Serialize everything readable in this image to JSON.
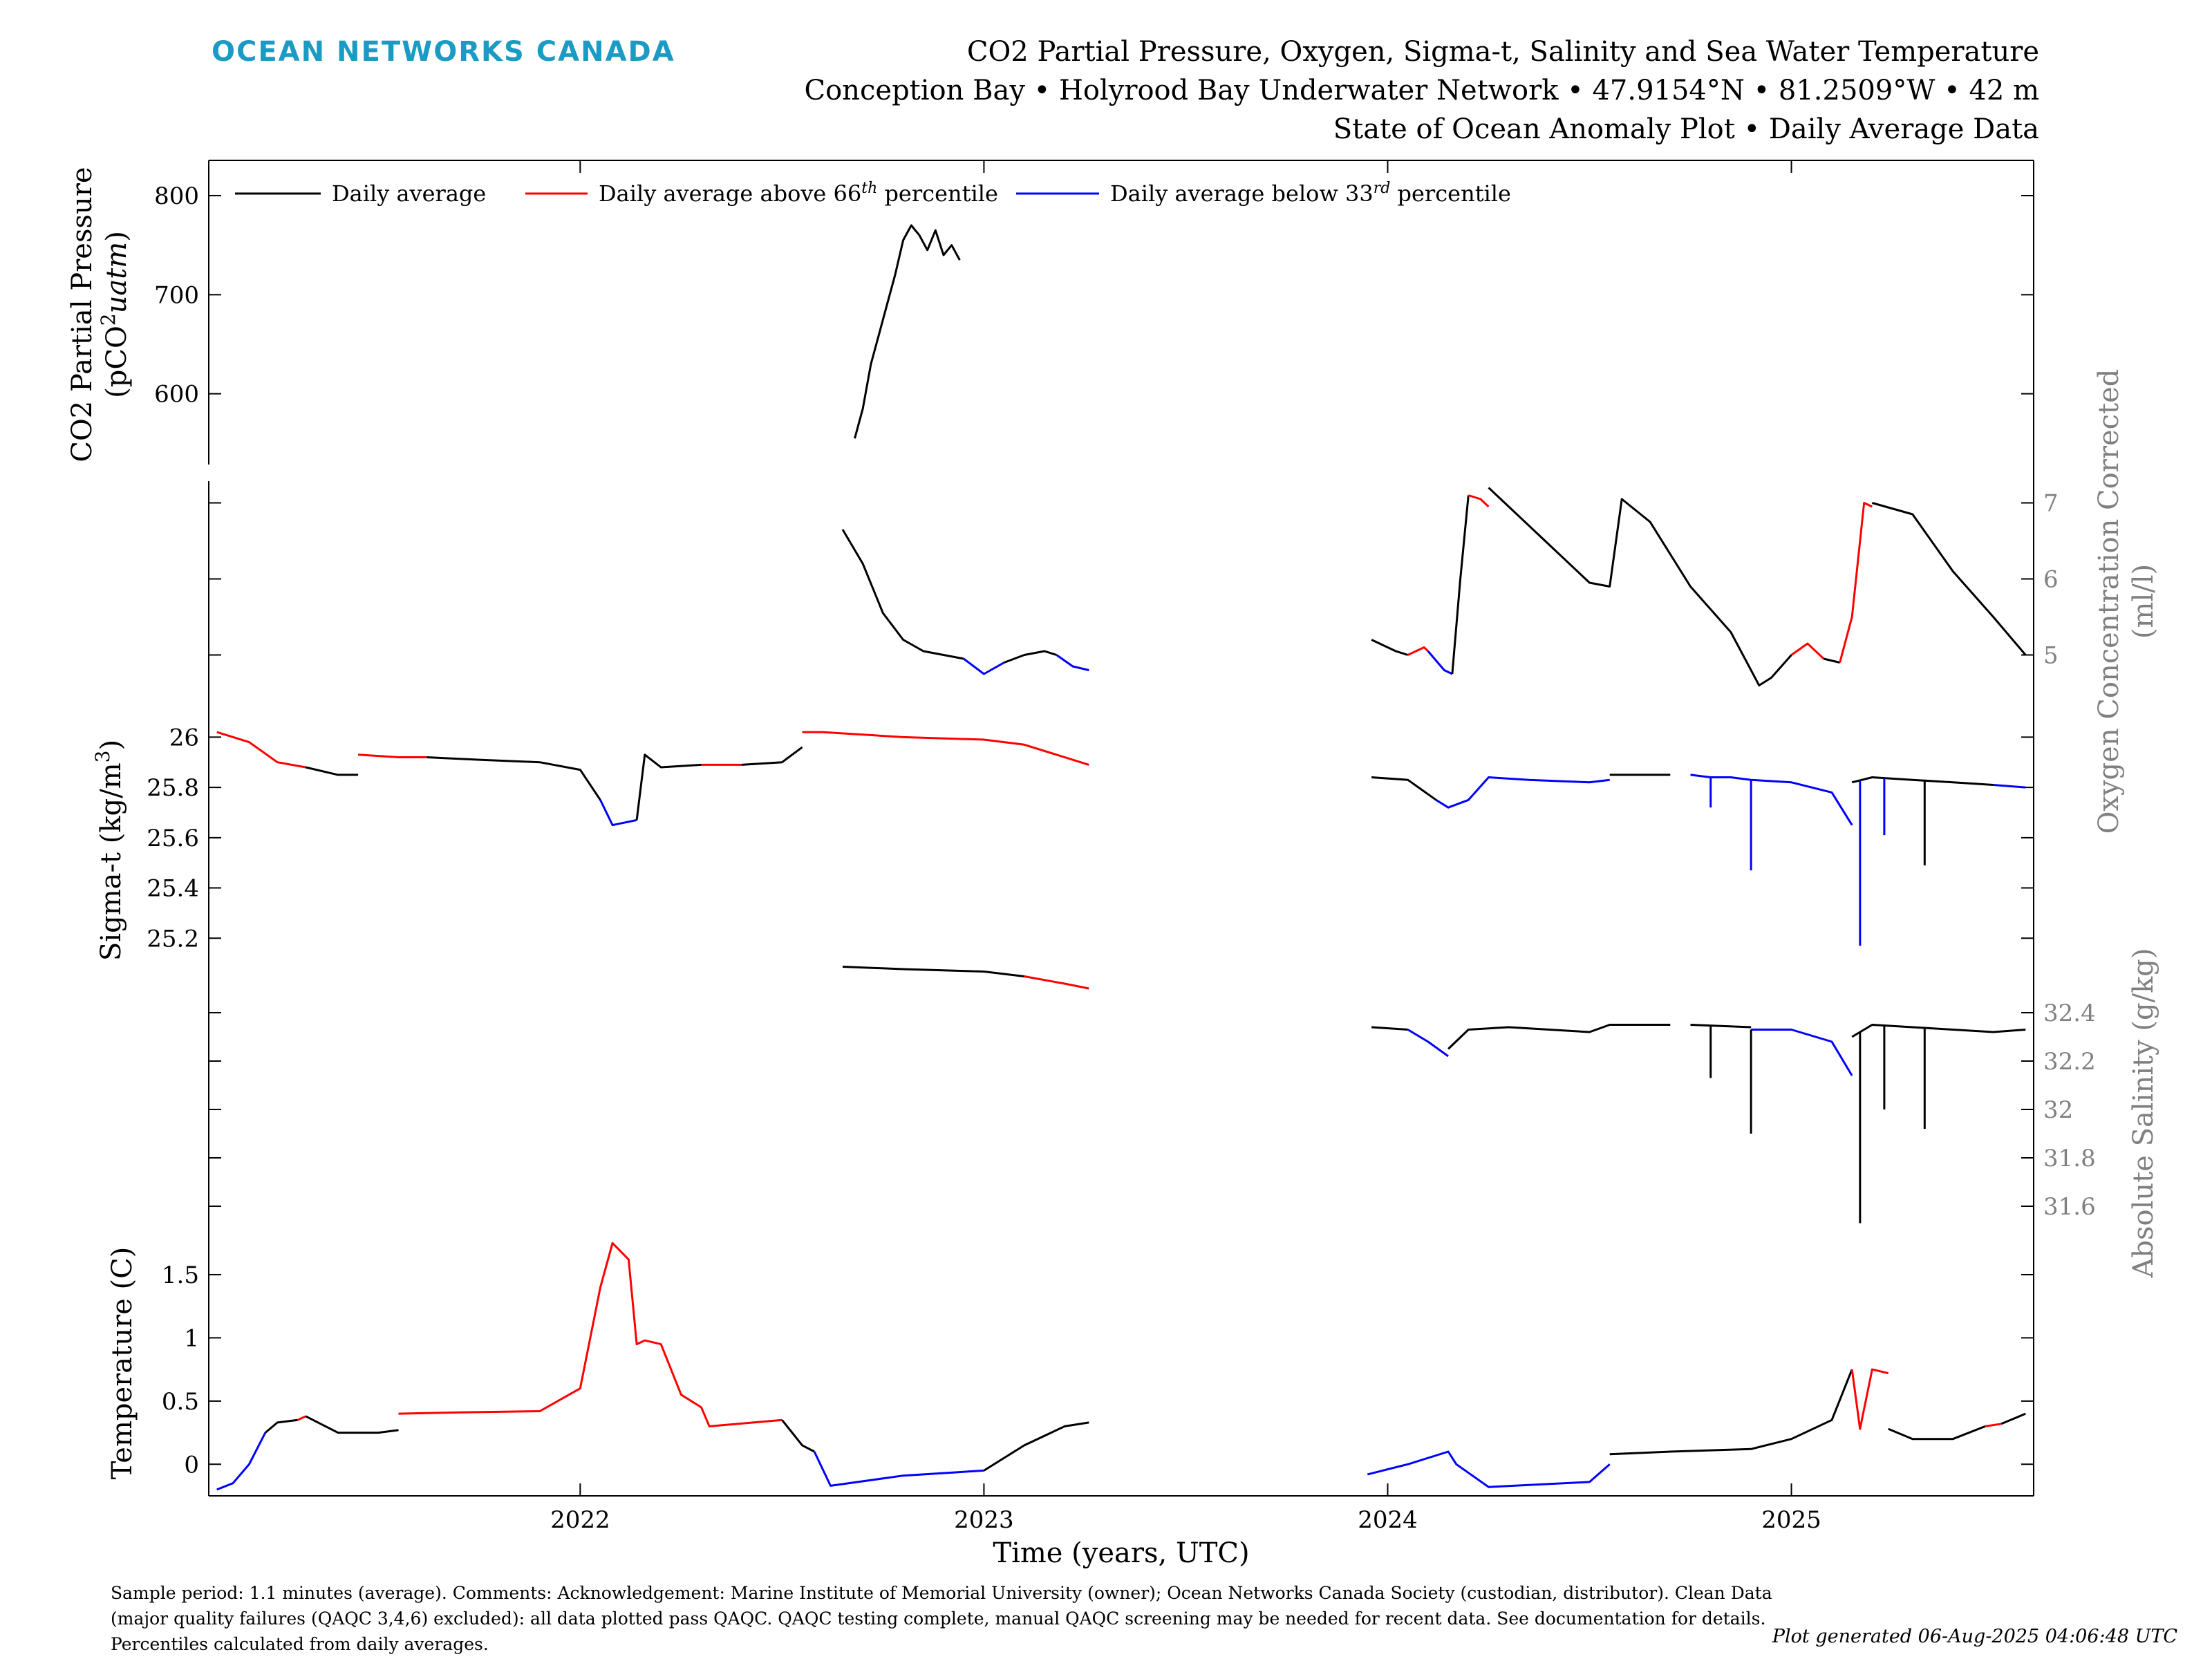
{
  "brand": "OCEAN NETWORKS CANADA",
  "title": {
    "line1": "CO2 Partial Pressure, Oxygen, Sigma-t, Salinity and Sea Water Temperature",
    "line2": "Conception Bay • Holyrood Bay Underwater Network • 47.9154°N • 81.2509°W • 42 m",
    "line3": "State of Ocean Anomaly Plot • Daily Average Data"
  },
  "legend": {
    "daily_average": "Daily average",
    "above_prefix": "Daily average above 66",
    "above_sup": "th",
    "above_suffix": " percentile",
    "below_prefix": "Daily average below 33",
    "below_sup": "rd",
    "below_suffix": " percentile"
  },
  "colors": {
    "normal": "#000000",
    "above": "#ff0000",
    "below": "#0000ff",
    "right_axis": "#808080",
    "brand": "#1b9bc4"
  },
  "footer": "Sample period: 1.1 minutes (average). Comments: Acknowledgement: Marine Institute of Memorial University (owner); Ocean Networks Canada Society (custodian, distributor). Clean Data (major quality failures (QAQC 3,4,6) excluded): all data plotted pass QAQC. QAQC testing complete, manual QAQC screening may be needed for recent data. See documentation for details. Percentiles calculated from daily averages.",
  "generated": "Plot generated 06-Aug-2025 04:06:48 UTC",
  "chart_data": [
    {
      "type": "line",
      "panel": "CO2 Partial Pressure",
      "ylabel_line1": "CO2 Partial Pressure",
      "ylabel_line2_prefix": "(pCO",
      "ylabel_line2_sup": "2",
      "ylabel_line2_suffix": "uatm)",
      "side": "left",
      "ylim": [
        530,
        830
      ],
      "yticks": [
        600,
        700,
        800
      ],
      "ytick_labels": [
        "600",
        "700",
        "800"
      ],
      "segments": [
        {
          "state": "normal",
          "x": [
            2022.68,
            2022.7,
            2022.72,
            2022.74,
            2022.76,
            2022.78,
            2022.8,
            2022.82,
            2022.84,
            2022.86,
            2022.88,
            2022.9,
            2022.92,
            2022.94
          ],
          "y": [
            555,
            585,
            630,
            660,
            690,
            720,
            755,
            770,
            760,
            745,
            765,
            740,
            750,
            735
          ]
        }
      ]
    },
    {
      "type": "line",
      "panel": "Oxygen Concentration Corrected",
      "ylabel_line1": "Oxygen Concentration Corrected",
      "ylabel_line2": "(ml/l)",
      "side": "right",
      "ylim": [
        4.25,
        7.25
      ],
      "yticks": [
        5,
        6,
        7
      ],
      "ytick_labels": [
        "5",
        "6",
        "7"
      ],
      "segments": [
        {
          "state": "normal",
          "x": [
            2022.65,
            2022.7,
            2022.75,
            2022.8,
            2022.85,
            2022.9,
            2022.95
          ],
          "y": [
            6.65,
            6.2,
            5.55,
            5.2,
            5.05,
            5.0,
            4.95
          ]
        },
        {
          "state": "below",
          "x": [
            2022.95,
            2023.0,
            2023.05
          ],
          "y": [
            4.95,
            4.75,
            4.9
          ]
        },
        {
          "state": "normal",
          "x": [
            2023.05,
            2023.1,
            2023.15,
            2023.18
          ],
          "y": [
            4.9,
            5.0,
            5.05,
            5.0
          ]
        },
        {
          "state": "below",
          "x": [
            2023.18,
            2023.22,
            2023.26
          ],
          "y": [
            5.0,
            4.85,
            4.8
          ]
        },
        {
          "state": "normal",
          "x": [
            2023.96,
            2024.02,
            2024.05
          ],
          "y": [
            5.2,
            5.05,
            5.0
          ]
        },
        {
          "state": "above",
          "x": [
            2024.05,
            2024.09,
            2024.1
          ],
          "y": [
            5.0,
            5.1,
            5.05
          ]
        },
        {
          "state": "below",
          "x": [
            2024.1,
            2024.14,
            2024.16
          ],
          "y": [
            5.05,
            4.8,
            4.75
          ]
        },
        {
          "state": "normal",
          "x": [
            2024.16,
            2024.18,
            2024.2
          ],
          "y": [
            4.75,
            6.0,
            7.1
          ]
        },
        {
          "state": "above",
          "x": [
            2024.2,
            2024.23,
            2024.25
          ],
          "y": [
            7.1,
            7.05,
            6.95
          ]
        },
        {
          "state": "normal",
          "x": [
            2024.25,
            2024.3,
            2024.4,
            2024.5,
            2024.55,
            2024.58,
            2024.65,
            2024.75,
            2024.85,
            2024.92,
            2024.95,
            2025.0
          ],
          "y": [
            7.2,
            6.95,
            6.45,
            5.95,
            5.9,
            7.05,
            6.75,
            5.9,
            5.3,
            4.6,
            4.7,
            5.0
          ]
        },
        {
          "state": "above",
          "x": [
            2025.0,
            2025.04,
            2025.08
          ],
          "y": [
            5.0,
            5.15,
            4.95
          ]
        },
        {
          "state": "normal",
          "x": [
            2025.08,
            2025.12
          ],
          "y": [
            4.95,
            4.9
          ]
        },
        {
          "state": "above",
          "x": [
            2025.12,
            2025.15,
            2025.18,
            2025.2
          ],
          "y": [
            4.9,
            5.5,
            7.0,
            6.95
          ]
        },
        {
          "state": "normal",
          "x": [
            2025.2,
            2025.3,
            2025.4,
            2025.5,
            2025.58
          ],
          "y": [
            7.0,
            6.85,
            6.1,
            5.5,
            5.0
          ]
        }
      ]
    },
    {
      "type": "line",
      "panel": "Sigma-t",
      "ylabel_prefix": "Sigma-t (kg/m",
      "ylabel_sup": "3",
      "ylabel_suffix": ")",
      "side": "left",
      "ylim": [
        25.0,
        26.1
      ],
      "yticks": [
        25.2,
        25.4,
        25.6,
        25.8,
        26
      ],
      "ytick_labels": [
        "25.2",
        "25.4",
        "25.6",
        "25.8",
        "26"
      ],
      "segments": [
        {
          "state": "above",
          "x": [
            2021.1,
            2021.18,
            2021.25,
            2021.32
          ],
          "y": [
            26.02,
            25.98,
            25.9,
            25.88
          ]
        },
        {
          "state": "normal",
          "x": [
            2021.32,
            2021.4,
            2021.45
          ],
          "y": [
            25.88,
            25.85,
            25.85
          ]
        },
        {
          "state": "above",
          "x": [
            2021.45,
            2021.55,
            2021.62
          ],
          "y": [
            25.93,
            25.92,
            25.92
          ]
        },
        {
          "state": "normal",
          "x": [
            2021.62,
            2021.75,
            2021.9,
            2022.0,
            2022.05
          ],
          "y": [
            25.92,
            25.91,
            25.9,
            25.87,
            25.75
          ]
        },
        {
          "state": "below",
          "x": [
            2022.05,
            2022.08,
            2022.14
          ],
          "y": [
            25.75,
            25.65,
            25.67
          ]
        },
        {
          "state": "normal",
          "x": [
            2022.14,
            2022.16,
            2022.2,
            2022.3
          ],
          "y": [
            25.67,
            25.93,
            25.88,
            25.89
          ]
        },
        {
          "state": "above",
          "x": [
            2022.3,
            2022.4
          ],
          "y": [
            25.89,
            25.89
          ]
        },
        {
          "state": "normal",
          "x": [
            2022.4,
            2022.5,
            2022.55
          ],
          "y": [
            25.89,
            25.9,
            25.96
          ]
        },
        {
          "state": "above",
          "x": [
            2022.55,
            2022.6,
            2022.8,
            2023.0,
            2023.1,
            2023.26
          ],
          "y": [
            26.02,
            26.02,
            26.0,
            25.99,
            25.97,
            25.89
          ]
        },
        {
          "state": "normal",
          "x": [
            2023.96,
            2024.05,
            2024.12
          ],
          "y": [
            25.84,
            25.83,
            25.75
          ]
        },
        {
          "state": "below",
          "x": [
            2024.12,
            2024.15,
            2024.2,
            2024.25,
            2024.35,
            2024.5,
            2024.55
          ],
          "y": [
            25.75,
            25.72,
            25.75,
            25.84,
            25.83,
            25.82,
            25.83
          ]
        },
        {
          "state": "normal",
          "x": [
            2024.55,
            2024.7
          ],
          "y": [
            25.85,
            25.85
          ]
        },
        {
          "state": "below",
          "x": [
            2024.75,
            2024.8,
            2024.85,
            2024.9,
            2025.0,
            2025.1,
            2025.15
          ],
          "y": [
            25.85,
            25.84,
            25.84,
            25.83,
            25.82,
            25.78,
            25.65
          ]
        },
        {
          "state": "normal",
          "x": [
            2025.15,
            2025.2,
            2025.3,
            2025.4,
            2025.5
          ],
          "y": [
            25.82,
            25.84,
            25.83,
            25.82,
            25.81
          ]
        },
        {
          "state": "below",
          "x": [
            2025.5,
            2025.58
          ],
          "y": [
            25.81,
            25.8
          ]
        }
      ],
      "spikes": [
        {
          "state": "below",
          "x": 2024.8,
          "y_min": 25.72
        },
        {
          "state": "below",
          "x": 2024.9,
          "y_min": 25.47
        },
        {
          "state": "below",
          "x": 2025.17,
          "y_min": 25.17
        },
        {
          "state": "below",
          "x": 2025.23,
          "y_min": 25.61
        },
        {
          "state": "normal",
          "x": 2025.33,
          "y_min": 25.49
        }
      ]
    },
    {
      "type": "line",
      "panel": "Absolute Salinity",
      "ylabel": "Absolute Salinity (g/kg)",
      "side": "right",
      "ylim": [
        31.5,
        32.5
      ],
      "yticks": [
        31.6,
        31.8,
        32,
        32.2,
        32.4
      ],
      "ytick_labels": [
        "31.6",
        "31.8",
        "32",
        "32.2",
        "32.4"
      ],
      "segments": [
        {
          "state": "normal",
          "x": [
            2022.65,
            2022.8,
            2023.0,
            2023.1
          ],
          "y": [
            32.59,
            32.58,
            32.57,
            32.55
          ]
        },
        {
          "state": "above",
          "x": [
            2023.1,
            2023.2,
            2023.26
          ],
          "y": [
            32.55,
            32.52,
            32.5
          ]
        },
        {
          "state": "normal",
          "x": [
            2023.96,
            2024.05
          ],
          "y": [
            32.34,
            32.33
          ]
        },
        {
          "state": "below",
          "x": [
            2024.05,
            2024.1,
            2024.15
          ],
          "y": [
            32.33,
            32.28,
            32.22
          ]
        },
        {
          "state": "normal",
          "x": [
            2024.15,
            2024.2,
            2024.3,
            2024.5,
            2024.55,
            2024.7
          ],
          "y": [
            32.25,
            32.33,
            32.34,
            32.32,
            32.35,
            32.35
          ]
        },
        {
          "state": "normal",
          "x": [
            2024.75,
            2024.9
          ],
          "y": [
            32.35,
            32.34
          ]
        },
        {
          "state": "below",
          "x": [
            2024.9,
            2025.0,
            2025.1,
            2025.15
          ],
          "y": [
            32.33,
            32.33,
            32.28,
            32.14
          ]
        },
        {
          "state": "normal",
          "x": [
            2025.15,
            2025.2,
            2025.3,
            2025.4,
            2025.5,
            2025.58
          ],
          "y": [
            32.3,
            32.35,
            32.34,
            32.33,
            32.32,
            32.33
          ]
        }
      ],
      "spikes": [
        {
          "state": "normal",
          "x": 2024.8,
          "y_min": 32.13
        },
        {
          "state": "normal",
          "x": 2024.9,
          "y_min": 31.9
        },
        {
          "state": "normal",
          "x": 2025.17,
          "y_min": 31.53
        },
        {
          "state": "normal",
          "x": 2025.23,
          "y_min": 32.0
        },
        {
          "state": "normal",
          "x": 2025.33,
          "y_min": 31.92
        }
      ]
    },
    {
      "type": "line",
      "panel": "Temperature",
      "ylabel": "Temperature (C)",
      "side": "left",
      "xlabel": "Time (years, UTC)",
      "ylim": [
        -0.25,
        1.85
      ],
      "yticks": [
        0,
        0.5,
        1,
        1.5
      ],
      "ytick_labels": [
        "0",
        "0.5",
        "1",
        "1.5"
      ],
      "segments": [
        {
          "state": "below",
          "x": [
            2021.1,
            2021.14,
            2021.18,
            2021.22
          ],
          "y": [
            -0.2,
            -0.15,
            0.0,
            0.25
          ]
        },
        {
          "state": "normal",
          "x": [
            2021.22,
            2021.25,
            2021.3
          ],
          "y": [
            0.25,
            0.33,
            0.35
          ]
        },
        {
          "state": "above",
          "x": [
            2021.3,
            2021.32
          ],
          "y": [
            0.35,
            0.38
          ]
        },
        {
          "state": "normal",
          "x": [
            2021.32,
            2021.4,
            2021.5,
            2021.55
          ],
          "y": [
            0.38,
            0.25,
            0.25,
            0.27
          ]
        },
        {
          "state": "above",
          "x": [
            2021.55,
            2021.7,
            2021.9,
            2022.0,
            2022.05,
            2022.08,
            2022.12,
            2022.14,
            2022.16,
            2022.2,
            2022.25,
            2022.3,
            2022.32,
            2022.5
          ],
          "y": [
            0.4,
            0.41,
            0.42,
            0.6,
            1.4,
            1.75,
            1.62,
            0.95,
            0.98,
            0.95,
            0.55,
            0.45,
            0.3,
            0.35
          ]
        },
        {
          "state": "normal",
          "x": [
            2022.5,
            2022.55,
            2022.58
          ],
          "y": [
            0.35,
            0.15,
            0.1
          ]
        },
        {
          "state": "below",
          "x": [
            2022.58,
            2022.62,
            2022.8,
            2023.0
          ],
          "y": [
            0.1,
            -0.17,
            -0.09,
            -0.05
          ]
        },
        {
          "state": "normal",
          "x": [
            2023.0,
            2023.1,
            2023.2,
            2023.26
          ],
          "y": [
            -0.05,
            0.15,
            0.3,
            0.33
          ]
        },
        {
          "state": "below",
          "x": [
            2023.95,
            2024.05,
            2024.15,
            2024.17,
            2024.25,
            2024.5,
            2024.55
          ],
          "y": [
            -0.08,
            0.0,
            0.1,
            0.0,
            -0.18,
            -0.14,
            0.0
          ]
        },
        {
          "state": "normal",
          "x": [
            2024.55,
            2024.7,
            2024.9,
            2025.0,
            2025.1,
            2025.15
          ],
          "y": [
            0.08,
            0.1,
            0.12,
            0.2,
            0.35,
            0.75
          ]
        },
        {
          "state": "above",
          "x": [
            2025.15,
            2025.17,
            2025.2,
            2025.24
          ],
          "y": [
            0.75,
            0.28,
            0.75,
            0.72
          ]
        },
        {
          "state": "normal",
          "x": [
            2025.24,
            2025.3,
            2025.4,
            2025.48
          ],
          "y": [
            0.28,
            0.2,
            0.2,
            0.3
          ]
        },
        {
          "state": "above",
          "x": [
            2025.48,
            2025.52
          ],
          "y": [
            0.3,
            0.32
          ]
        },
        {
          "state": "normal",
          "x": [
            2025.52,
            2025.58
          ],
          "y": [
            0.32,
            0.4
          ]
        }
      ]
    }
  ],
  "xaxis": {
    "label": "Time (years, UTC)",
    "xlim": [
      2021.08,
      2025.6
    ],
    "ticks": [
      2022,
      2023,
      2024,
      2025
    ],
    "tick_labels": [
      "2022",
      "2023",
      "2024",
      "2025"
    ]
  }
}
